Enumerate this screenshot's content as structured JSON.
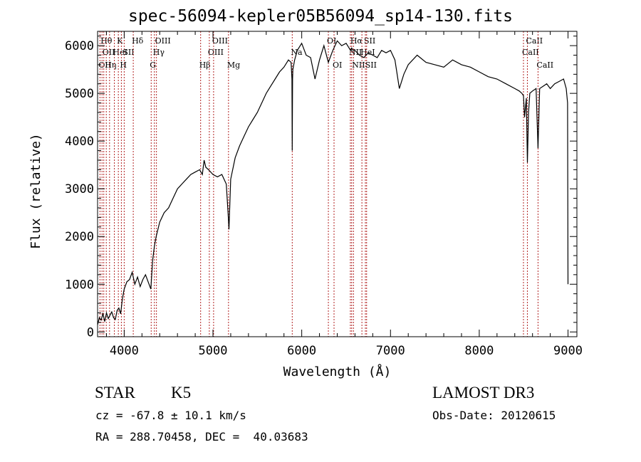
{
  "chart_data": {
    "type": "line",
    "title": "spec-56094-kepler05B56094_sp14-130.fits",
    "xlabel": "Wavelength (Å)",
    "ylabel": "Flux (relative)",
    "xlim": [
      3700,
      9100
    ],
    "ylim": [
      -100,
      6300
    ],
    "x_ticks": [
      4000,
      5000,
      6000,
      7000,
      8000,
      9000
    ],
    "y_ticks": [
      0,
      1000,
      2000,
      3000,
      4000,
      5000,
      6000
    ],
    "series": [
      {
        "name": "flux",
        "x": [
          3700,
          3720,
          3740,
          3760,
          3780,
          3800,
          3820,
          3840,
          3860,
          3880,
          3900,
          3920,
          3940,
          3960,
          3980,
          4000,
          4030,
          4060,
          4090,
          4120,
          4150,
          4180,
          4210,
          4240,
          4270,
          4300,
          4320,
          4340,
          4360,
          4400,
          4450,
          4500,
          4550,
          4600,
          4650,
          4700,
          4750,
          4800,
          4850,
          4880,
          4900,
          4920,
          4950,
          5000,
          5050,
          5100,
          5150,
          5170,
          5180,
          5200,
          5250,
          5300,
          5350,
          5400,
          5450,
          5500,
          5550,
          5600,
          5650,
          5700,
          5750,
          5800,
          5850,
          5880,
          5890,
          5893,
          5897,
          5900,
          5920,
          5950,
          6000,
          6050,
          6100,
          6150,
          6200,
          6250,
          6300,
          6350,
          6400,
          6450,
          6500,
          6550,
          6563,
          6580,
          6600,
          6650,
          6700,
          6750,
          6800,
          6850,
          6900,
          6950,
          7000,
          7050,
          7100,
          7150,
          7200,
          7300,
          7400,
          7500,
          7600,
          7700,
          7800,
          7900,
          8000,
          8100,
          8200,
          8300,
          8400,
          8450,
          8480,
          8498,
          8510,
          8530,
          8542,
          8555,
          8570,
          8600,
          8640,
          8662,
          8680,
          8720,
          8760,
          8800,
          8850,
          8900,
          8950,
          8980,
          8995,
          9000
        ],
        "y": [
          150,
          300,
          250,
          380,
          220,
          400,
          280,
          350,
          420,
          300,
          260,
          450,
          500,
          380,
          700,
          900,
          1050,
          1100,
          1250,
          1000,
          1150,
          950,
          1100,
          1200,
          1050,
          900,
          1500,
          1800,
          2000,
          2300,
          2500,
          2600,
          2800,
          3000,
          3100,
          3200,
          3300,
          3350,
          3400,
          3300,
          3600,
          3450,
          3400,
          3300,
          3250,
          3300,
          3100,
          2500,
          2150,
          3200,
          3650,
          3900,
          4100,
          4300,
          4450,
          4600,
          4800,
          5000,
          5150,
          5300,
          5450,
          5550,
          5700,
          5650,
          5300,
          3800,
          5300,
          5500,
          5700,
          5900,
          6050,
          5800,
          5750,
          5300,
          5700,
          6000,
          5650,
          5900,
          6100,
          6000,
          6050,
          5900,
          5950,
          5900,
          5900,
          5800,
          5750,
          5850,
          5800,
          5750,
          5900,
          5850,
          5900,
          5700,
          5100,
          5400,
          5600,
          5800,
          5650,
          5600,
          5550,
          5700,
          5600,
          5550,
          5450,
          5350,
          5300,
          5200,
          5100,
          5050,
          5000,
          4950,
          4500,
          4900,
          3550,
          4600,
          5000,
          5050,
          5100,
          3850,
          5100,
          5150,
          5200,
          5100,
          5200,
          5250,
          5300,
          5100,
          4800,
          1000
        ]
      }
    ],
    "lines": [
      {
        "w": 3727,
        "label": "OII",
        "row": 3
      },
      {
        "w": 3750,
        "label": "Hθ",
        "row": 1
      },
      {
        "w": 3770,
        "label": "OII",
        "row": 2
      },
      {
        "w": 3798,
        "label": "Hη",
        "row": 3
      },
      {
        "w": 3835,
        "label": "",
        "row": 1
      },
      {
        "w": 3889,
        "label": "HeI",
        "row": 2
      },
      {
        "w": 3934,
        "label": "K",
        "row": 1
      },
      {
        "w": 3968,
        "label": "H",
        "row": 3
      },
      {
        "w": 4000,
        "label": "SII",
        "row": 2
      },
      {
        "w": 4102,
        "label": "Hδ",
        "row": 1
      },
      {
        "w": 4304,
        "label": "G",
        "row": 3
      },
      {
        "w": 4340,
        "label": "Hγ",
        "row": 2
      },
      {
        "w": 4363,
        "label": "OIII",
        "row": 1
      },
      {
        "w": 4861,
        "label": "Hβ",
        "row": 3
      },
      {
        "w": 4959,
        "label": "OIII",
        "row": 2
      },
      {
        "w": 5007,
        "label": "OIII",
        "row": 1
      },
      {
        "w": 5175,
        "label": "Mg",
        "row": 3
      },
      {
        "w": 5893,
        "label": "Na",
        "row": 2
      },
      {
        "w": 6300,
        "label": "OI",
        "row": 1
      },
      {
        "w": 6364,
        "label": "OI",
        "row": 3
      },
      {
        "w": 6548,
        "label": "NII",
        "row": 2
      },
      {
        "w": 6563,
        "label": "Hα",
        "row": 1
      },
      {
        "w": 6583,
        "label": "NII",
        "row": 3
      },
      {
        "w": 6678,
        "label": "HeI",
        "row": 2
      },
      {
        "w": 6717,
        "label": "SII",
        "row": 1
      },
      {
        "w": 6731,
        "label": "SII",
        "row": 3
      },
      {
        "w": 8498,
        "label": "CaII",
        "row": 2
      },
      {
        "w": 8542,
        "label": "CaII",
        "row": 1
      },
      {
        "w": 8662,
        "label": "CaII",
        "row": 3
      }
    ]
  },
  "info": {
    "object_class": "STAR",
    "subclass": "K5",
    "redshift": "cz = -67.8 ± 10.1 km/s",
    "coords": "RA = 288.70458, DEC =  40.03683",
    "survey": "LAMOST DR3",
    "obs_date": "Obs-Date: 20120615"
  },
  "colors": {
    "spectrum": "#000000",
    "line_marker": "#b22222",
    "axis": "#000000"
  }
}
